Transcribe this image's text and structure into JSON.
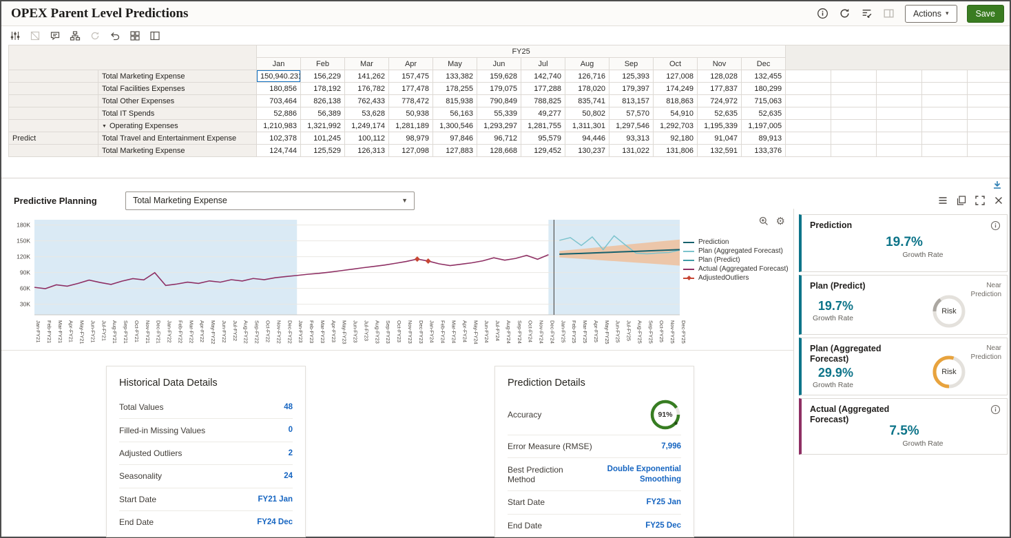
{
  "header": {
    "title": "OPEX Parent Level Predictions",
    "actions_label": "Actions",
    "save_label": "Save"
  },
  "grid": {
    "year": "FY25",
    "months": [
      "Jan",
      "Feb",
      "Mar",
      "Apr",
      "May",
      "Jun",
      "Jul",
      "Aug",
      "Sep",
      "Oct",
      "Nov",
      "Dec"
    ],
    "rows": [
      {
        "scenario": "",
        "member": "Total Marketing Expense",
        "highlight": true,
        "bold": false,
        "parent": false,
        "values": [
          "150,940.23127",
          "156,229",
          "141,262",
          "157,475",
          "133,382",
          "159,628",
          "142,740",
          "126,716",
          "125,393",
          "127,008",
          "128,028",
          "132,455"
        ]
      },
      {
        "scenario": "",
        "member": "Total Facilities Expenses",
        "highlight": false,
        "bold": false,
        "parent": false,
        "values": [
          "180,856",
          "178,192",
          "176,782",
          "177,478",
          "178,255",
          "179,075",
          "177,288",
          "178,020",
          "179,397",
          "174,249",
          "177,837",
          "180,299"
        ]
      },
      {
        "scenario": "",
        "member": "Total Other Expenses",
        "highlight": false,
        "bold": false,
        "parent": false,
        "values": [
          "703,464",
          "826,138",
          "762,433",
          "778,472",
          "815,938",
          "790,849",
          "788,825",
          "835,741",
          "813,157",
          "818,863",
          "724,972",
          "715,063"
        ]
      },
      {
        "scenario": "",
        "member": "Total IT Spends",
        "highlight": false,
        "bold": false,
        "parent": false,
        "values": [
          "52,886",
          "56,389",
          "53,628",
          "50,938",
          "56,163",
          "55,339",
          "49,277",
          "50,802",
          "57,570",
          "54,910",
          "52,635",
          "52,635"
        ]
      },
      {
        "scenario": "",
        "member": "Operating Expenses",
        "highlight": false,
        "bold": true,
        "parent": true,
        "values": [
          "1,210,983",
          "1,321,992",
          "1,249,174",
          "1,281,189",
          "1,300,546",
          "1,293,297",
          "1,281,755",
          "1,311,301",
          "1,297,546",
          "1,292,703",
          "1,195,339",
          "1,197,005"
        ]
      },
      {
        "scenario": "Predict",
        "member": "Total Travel and Entertainment Expense",
        "highlight": false,
        "bold": false,
        "parent": false,
        "values": [
          "102,378",
          "101,245",
          "100,112",
          "98,979",
          "97,846",
          "96,712",
          "95,579",
          "94,446",
          "93,313",
          "92,180",
          "91,047",
          "89,913"
        ]
      },
      {
        "scenario": "",
        "member": "Total Marketing Expense",
        "highlight": false,
        "bold": false,
        "parent": false,
        "values": [
          "124,744",
          "125,529",
          "126,313",
          "127,098",
          "127,883",
          "128,668",
          "129,452",
          "130,237",
          "131,022",
          "131,806",
          "132,591",
          "133,376"
        ]
      }
    ]
  },
  "panel": {
    "title": "Predictive Planning",
    "member_dropdown": "Total Marketing Expense"
  },
  "chart_data": {
    "type": "line",
    "years": [
      "FY21",
      "FY22",
      "FY23",
      "FY24",
      "FY25"
    ],
    "months": [
      "Jan",
      "Feb",
      "Mar",
      "Apr",
      "May",
      "Jun",
      "Jul",
      "Aug",
      "Sep",
      "Oct",
      "Nov",
      "Dec"
    ],
    "y_ticks": [
      30000,
      60000,
      90000,
      120000,
      150000,
      180000
    ],
    "y_tick_labels": [
      "30K",
      "60K",
      "90K",
      "120K",
      "150K",
      "180K"
    ],
    "y_min": 10000,
    "y_max": 190000,
    "history_shaded_months": [
      0,
      23.5
    ],
    "forecast_shaded_months": [
      47.5,
      59
    ],
    "divider_month": 47.5,
    "series": {
      "actual": [
        62000,
        59500,
        66800,
        64200,
        69500,
        75800,
        71200,
        67500,
        73800,
        78500,
        76200,
        89800,
        65500,
        68200,
        71800,
        69500,
        74200,
        71800,
        76500,
        74000,
        78800,
        76500,
        80200,
        82500,
        84500,
        86800,
        88500,
        90800,
        93500,
        96200,
        99000,
        101500,
        104200,
        107500,
        111000,
        115500,
        111800,
        106500,
        103200,
        105800,
        108500,
        112200,
        118000,
        113500,
        116800,
        122500,
        115200,
        123800
      ],
      "adjusted_outlier_indices": [
        35,
        36
      ],
      "prediction": [
        124744,
        125529,
        126313,
        127098,
        127883,
        128668,
        129452,
        130237,
        131022,
        131806,
        132591,
        133376
      ],
      "plan_predict": [
        124744,
        125529,
        126313,
        127098,
        127883,
        128668,
        129452,
        130237,
        131022,
        131806,
        132591,
        133376
      ],
      "plan_aggregated_forecast": [
        150940,
        156229,
        141262,
        157475,
        133382,
        159628,
        142740,
        126716,
        125393,
        127008,
        128028,
        132455
      ],
      "band_upper": [
        130744,
        132729,
        134713,
        136698,
        138683,
        140668,
        142652,
        144637,
        146622,
        148606,
        150591,
        152576
      ],
      "band_lower": [
        118744,
        117329,
        115913,
        114498,
        113083,
        111668,
        110252,
        108837,
        107422,
        106006,
        104591,
        103176
      ]
    },
    "colors": {
      "prediction": "#16606c",
      "plan_aggregated_forecast": "#7cc3cd",
      "plan_predict": "#3f9aa6",
      "actual": "#8e2f63",
      "adjusted_outliers": "#c74634",
      "band": "#efc09b",
      "shade": "#daeaf5"
    },
    "legend": [
      {
        "label": "Prediction",
        "key": "prediction",
        "marker": false
      },
      {
        "label": "Plan (Aggregated Forecast)",
        "key": "plan_aggregated_forecast",
        "marker": false
      },
      {
        "label": "Plan (Predict)",
        "key": "plan_predict",
        "marker": false
      },
      {
        "label": "Actual (Aggregated Forecast)",
        "key": "actual",
        "marker": false
      },
      {
        "label": "AdjustedOutliers",
        "key": "adjusted_outliers",
        "marker": true
      }
    ]
  },
  "summary_cards": [
    {
      "title": "Prediction",
      "value": "19.7%",
      "caption": "Growth Rate",
      "accent": "#0d7489",
      "has_info": true
    },
    {
      "title": "Plan (Predict)",
      "value": "19.7%",
      "caption": "Growth Rate",
      "accent": "#0d7489",
      "risk_label": "Risk",
      "note": "Near Prediction",
      "gauge_pct": 15,
      "gauge_color": "#aba7a1"
    },
    {
      "title": "Plan (Aggregated Forecast)",
      "value": "29.9%",
      "caption": "Growth Rate",
      "accent": "#0d7489",
      "risk_label": "Risk",
      "note": "Near Prediction",
      "gauge_pct": 55,
      "gauge_color": "#e8a33d"
    },
    {
      "title": "Actual (Aggregated Forecast)",
      "value": "7.5%",
      "caption": "Growth Rate",
      "accent": "#8e2f63",
      "has_info": true
    }
  ],
  "historical_card": {
    "title": "Historical Data Details",
    "rows": [
      {
        "label": "Total Values",
        "value": "48"
      },
      {
        "label": "Filled-in Missing Values",
        "value": "0"
      },
      {
        "label": "Adjusted Outliers",
        "value": "2"
      },
      {
        "label": "Seasonality",
        "value": "24"
      },
      {
        "label": "Start Date",
        "value": "FY21 Jan"
      },
      {
        "label": "End Date",
        "value": "FY24 Dec"
      }
    ]
  },
  "prediction_card": {
    "title": "Prediction Details",
    "accuracy": {
      "label": "Accuracy",
      "value": "91%",
      "pct": 91,
      "color": "#377d22"
    },
    "rows": [
      {
        "label": "Error Measure (RMSE)",
        "value": "7,996"
      },
      {
        "label": "Best Prediction Method",
        "value": "Double Exponential Smoothing"
      },
      {
        "label": "Start Date",
        "value": "FY25 Jan"
      },
      {
        "label": "End Date",
        "value": "FY25 Dec"
      }
    ]
  }
}
